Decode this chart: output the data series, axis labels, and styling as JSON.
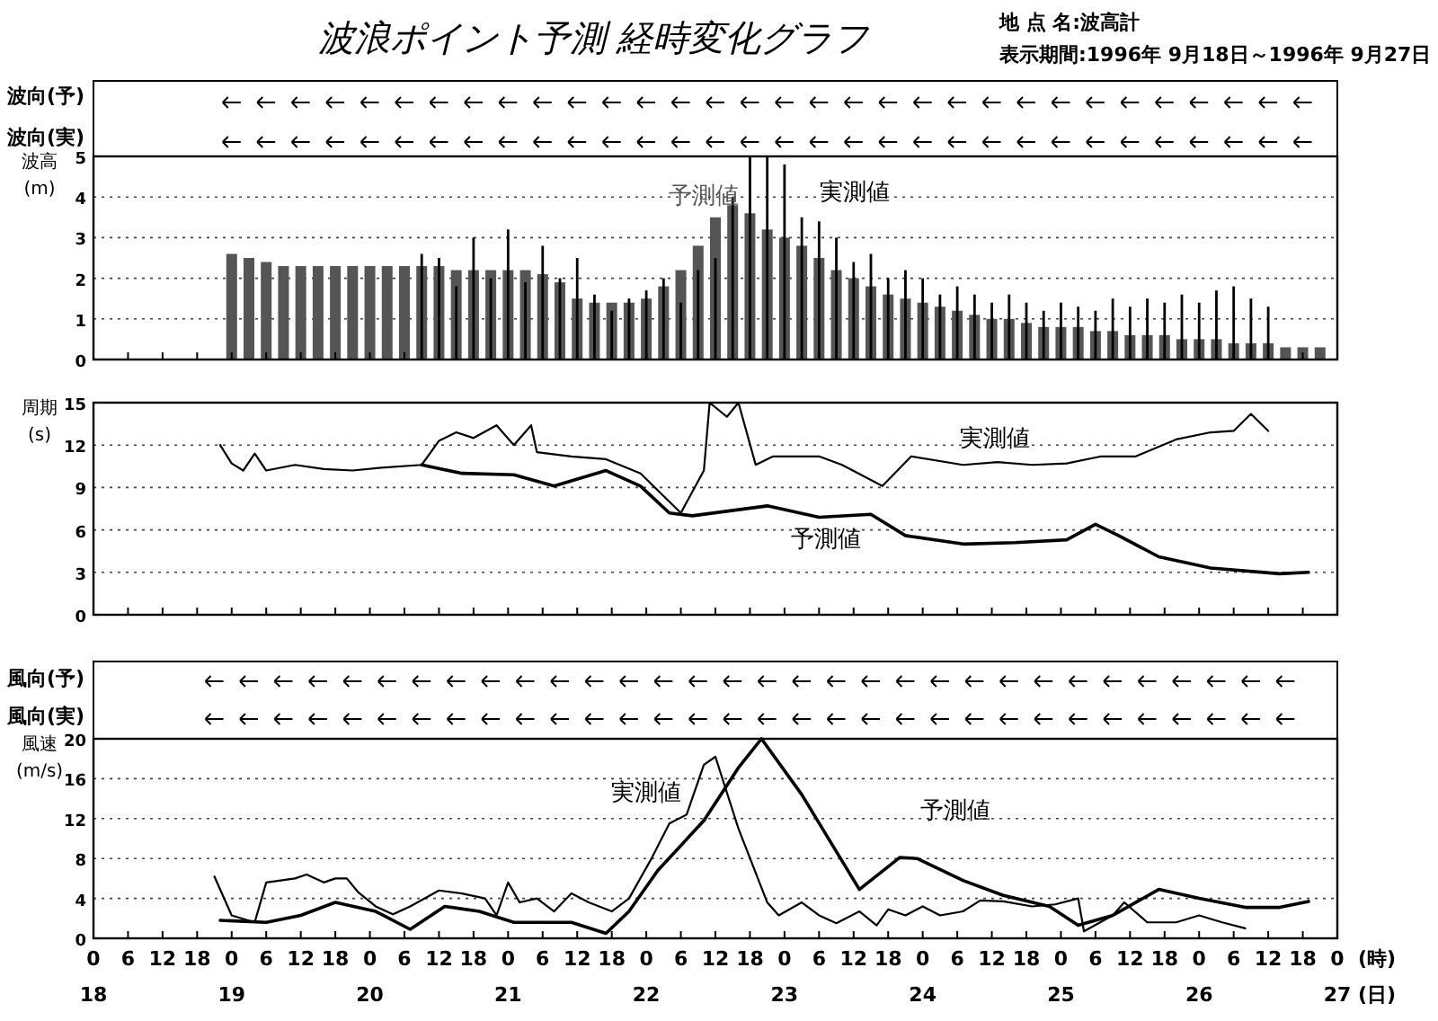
{
  "chart_data": [
    {
      "type": "bar",
      "title": "波浪ポイント予測 経時変化グラフ",
      "ylabel": "波高\n(m)",
      "annotations": [
        "地 点 名:波高計",
        "表示期間:1996年 9月18日～1996年 9月27日",
        "波向(予)",
        "波向(実)"
      ],
      "xlim": [
        "1996-09-18T00:00",
        "1996-09-27T00:00"
      ],
      "xticks": [
        "1996-09-18T00:00",
        "1996-09-18T06:00",
        "1996-09-18T12:00",
        "1996-09-18T18:00",
        "1996-09-19T00:00",
        "1996-09-19T06:00",
        "1996-09-19T12:00",
        "1996-09-19T18:00",
        "1996-09-20T00:00",
        "1996-09-20T06:00",
        "1996-09-20T12:00",
        "1996-09-20T18:00",
        "1996-09-21T00:00",
        "1996-09-21T06:00",
        "1996-09-21T12:00",
        "1996-09-21T18:00",
        "1996-09-22T00:00",
        "1996-09-22T06:00",
        "1996-09-22T12:00",
        "1996-09-22T18:00",
        "1996-09-23T00:00",
        "1996-09-23T06:00",
        "1996-09-23T12:00",
        "1996-09-23T18:00",
        "1996-09-24T00:00",
        "1996-09-24T06:00",
        "1996-09-24T12:00",
        "1996-09-24T18:00",
        "1996-09-25T00:00",
        "1996-09-25T06:00",
        "1996-09-25T12:00",
        "1996-09-25T18:00",
        "1996-09-26T00:00",
        "1996-09-26T06:00",
        "1996-09-26T12:00",
        "1996-09-26T18:00",
        "1996-09-27T00:00"
      ],
      "ylim": [
        0,
        5
      ],
      "yticks": [
        0,
        1,
        2,
        3,
        4,
        5
      ],
      "grid": "y",
      "tick_labels": "y",
      "series": [
        {
          "name": "予測値",
          "color": "#555555",
          "x": [
            "1996-09-19T00:00",
            "1996-09-19T03:00",
            "1996-09-19T06:00",
            "1996-09-19T09:00",
            "1996-09-19T12:00",
            "1996-09-19T15:00",
            "1996-09-19T18:00",
            "1996-09-19T21:00",
            "1996-09-20T00:00",
            "1996-09-20T03:00",
            "1996-09-20T06:00",
            "1996-09-20T09:00",
            "1996-09-20T12:00",
            "1996-09-20T15:00",
            "1996-09-20T18:00",
            "1996-09-20T21:00",
            "1996-09-21T00:00",
            "1996-09-21T03:00",
            "1996-09-21T06:00",
            "1996-09-21T09:00",
            "1996-09-21T12:00",
            "1996-09-21T15:00",
            "1996-09-21T18:00",
            "1996-09-21T21:00",
            "1996-09-22T00:00",
            "1996-09-22T03:00",
            "1996-09-22T06:00",
            "1996-09-22T09:00",
            "1996-09-22T12:00",
            "1996-09-22T15:00",
            "1996-09-22T18:00",
            "1996-09-22T21:00",
            "1996-09-23T00:00",
            "1996-09-23T03:00",
            "1996-09-23T06:00",
            "1996-09-23T09:00",
            "1996-09-23T12:00",
            "1996-09-23T15:00",
            "1996-09-23T18:00",
            "1996-09-23T21:00",
            "1996-09-24T00:00",
            "1996-09-24T03:00",
            "1996-09-24T06:00",
            "1996-09-24T09:00",
            "1996-09-24T12:00",
            "1996-09-24T15:00",
            "1996-09-24T18:00",
            "1996-09-24T21:00",
            "1996-09-25T00:00",
            "1996-09-25T03:00",
            "1996-09-25T06:00",
            "1996-09-25T09:00",
            "1996-09-25T12:00",
            "1996-09-25T15:00",
            "1996-09-25T18:00",
            "1996-09-25T21:00",
            "1996-09-26T00:00",
            "1996-09-26T03:00",
            "1996-09-26T06:00",
            "1996-09-26T09:00",
            "1996-09-26T12:00",
            "1996-09-26T15:00",
            "1996-09-26T18:00",
            "1996-09-26T21:00"
          ],
          "values": [
            2.6,
            2.5,
            2.4,
            2.3,
            2.3,
            2.3,
            2.3,
            2.3,
            2.3,
            2.3,
            2.3,
            2.3,
            2.3,
            2.2,
            2.2,
            2.2,
            2.2,
            2.2,
            2.1,
            1.9,
            1.5,
            1.4,
            1.4,
            1.4,
            1.5,
            1.8,
            2.2,
            2.8,
            3.5,
            3.8,
            3.6,
            3.2,
            3.0,
            2.8,
            2.5,
            2.2,
            2.0,
            1.8,
            1.6,
            1.5,
            1.4,
            1.3,
            1.2,
            1.1,
            1.0,
            1.0,
            0.9,
            0.8,
            0.8,
            0.8,
            0.7,
            0.7,
            0.6,
            0.6,
            0.6,
            0.5,
            0.5,
            0.5,
            0.4,
            0.4,
            0.4,
            0.3,
            0.3,
            0.3
          ]
        },
        {
          "name": "実測値",
          "color": "#000000",
          "x": [
            "1996-09-20T09:00",
            "1996-09-20T12:00",
            "1996-09-20T15:00",
            "1996-09-20T18:00",
            "1996-09-20T21:00",
            "1996-09-21T00:00",
            "1996-09-21T03:00",
            "1996-09-21T06:00",
            "1996-09-21T09:00",
            "1996-09-21T12:00",
            "1996-09-21T15:00",
            "1996-09-21T18:00",
            "1996-09-21T21:00",
            "1996-09-22T00:00",
            "1996-09-22T03:00",
            "1996-09-22T06:00",
            "1996-09-22T09:00",
            "1996-09-22T12:00",
            "1996-09-22T15:00",
            "1996-09-22T18:00",
            "1996-09-22T21:00",
            "1996-09-23T00:00",
            "1996-09-23T03:00",
            "1996-09-23T06:00",
            "1996-09-23T09:00",
            "1996-09-23T12:00",
            "1996-09-23T15:00",
            "1996-09-23T18:00",
            "1996-09-23T21:00",
            "1996-09-24T00:00",
            "1996-09-24T03:00",
            "1996-09-24T06:00",
            "1996-09-24T09:00",
            "1996-09-24T12:00",
            "1996-09-24T15:00",
            "1996-09-24T18:00",
            "1996-09-24T21:00",
            "1996-09-25T00:00",
            "1996-09-25T03:00",
            "1996-09-25T06:00",
            "1996-09-25T09:00",
            "1996-09-25T12:00",
            "1996-09-25T15:00",
            "1996-09-25T18:00",
            "1996-09-25T21:00",
            "1996-09-26T00:00",
            "1996-09-26T03:00",
            "1996-09-26T06:00",
            "1996-09-26T09:00",
            "1996-09-26T12:00"
          ],
          "values": [
            2.6,
            2.5,
            1.8,
            3.0,
            2.0,
            3.2,
            1.9,
            2.8,
            2.0,
            2.5,
            1.6,
            1.2,
            1.5,
            1.7,
            2.0,
            1.4,
            2.2,
            2.5,
            4.0,
            5.0,
            5.0,
            4.8,
            3.5,
            3.4,
            3.0,
            2.4,
            2.6,
            2.0,
            2.2,
            2.0,
            1.6,
            1.8,
            1.6,
            1.4,
            1.6,
            1.4,
            1.2,
            1.4,
            1.3,
            1.2,
            1.5,
            1.3,
            1.5,
            1.4,
            1.6,
            1.4,
            1.7,
            1.8,
            1.5,
            1.3
          ]
        }
      ]
    },
    {
      "type": "line",
      "ylabel": "周期\n(s)",
      "xlim": [
        "1996-09-18T00:00",
        "1996-09-27T00:00"
      ],
      "xticks": [
        "1996-09-18T00:00",
        "1996-09-18T06:00",
        "1996-09-18T12:00",
        "1996-09-18T18:00",
        "1996-09-19T00:00",
        "1996-09-19T06:00",
        "1996-09-19T12:00",
        "1996-09-19T18:00",
        "1996-09-20T00:00",
        "1996-09-20T06:00",
        "1996-09-20T12:00",
        "1996-09-20T18:00",
        "1996-09-21T00:00",
        "1996-09-21T06:00",
        "1996-09-21T12:00",
        "1996-09-21T18:00",
        "1996-09-22T00:00",
        "1996-09-22T06:00",
        "1996-09-22T12:00",
        "1996-09-22T18:00",
        "1996-09-23T00:00",
        "1996-09-23T06:00",
        "1996-09-23T12:00",
        "1996-09-23T18:00",
        "1996-09-24T00:00",
        "1996-09-24T06:00",
        "1996-09-24T12:00",
        "1996-09-24T18:00",
        "1996-09-25T00:00",
        "1996-09-25T06:00",
        "1996-09-25T12:00",
        "1996-09-25T18:00",
        "1996-09-26T00:00",
        "1996-09-26T06:00",
        "1996-09-26T12:00",
        "1996-09-26T18:00",
        "1996-09-27T00:00"
      ],
      "ylim": [
        0,
        15
      ],
      "yticks": [
        0,
        3,
        6,
        9,
        12,
        15
      ],
      "grid": "y",
      "tick_labels": "y",
      "series": [
        {
          "name": "予測値",
          "color": "#000000",
          "x": [
            "1996-09-20T09:00",
            "1996-09-20T16:00",
            "1996-09-21T01:00",
            "1996-09-21T08:00",
            "1996-09-21T17:00",
            "1996-09-21T23:00",
            "1996-09-22T04:00",
            "1996-09-22T08:00",
            "1996-09-22T21:00",
            "1996-09-23T06:00",
            "1996-09-23T15:00",
            "1996-09-23T21:00",
            "1996-09-24T07:00",
            "1996-09-24T16:00",
            "1996-09-25T01:00",
            "1996-09-25T06:00",
            "1996-09-25T10:00",
            "1996-09-25T17:00",
            "1996-09-26T02:00",
            "1996-09-26T14:00",
            "1996-09-26T19:00"
          ],
          "values": [
            10.6,
            10,
            9.9,
            9.1,
            10.2,
            9.1,
            7.2,
            7,
            7.7,
            6.9,
            7.1,
            5.6,
            5,
            5.1,
            5.3,
            6.4,
            5.6,
            4.1,
            3.3,
            2.9,
            3.0
          ]
        },
        {
          "name": "実測値",
          "color": "#000000",
          "x": [
            "1996-09-18T22:00",
            "1996-09-19T00:00",
            "1996-09-19T02:00",
            "1996-09-19T04:00",
            "1996-09-19T06:00",
            "1996-09-19T11:00",
            "1996-09-19T16:00",
            "1996-09-19T21:00",
            "1996-09-20T02:00",
            "1996-09-20T09:00",
            "1996-09-20T12:00",
            "1996-09-20T15:00",
            "1996-09-20T18:00",
            "1996-09-20T22:00",
            "1996-09-21T01:00",
            "1996-09-21T04:00",
            "1996-09-21T05:00",
            "1996-09-21T11:00",
            "1996-09-21T17:00",
            "1996-09-21T23:00",
            "1996-09-22T06:00",
            "1996-09-22T10:00",
            "1996-09-22T11:00",
            "1996-09-22T14:00",
            "1996-09-22T16:00",
            "1996-09-22T19:00",
            "1996-09-22T22:00",
            "1996-09-23T06:00",
            "1996-09-23T10:00",
            "1996-09-23T17:00",
            "1996-09-23T22:00",
            "1996-09-24T07:00",
            "1996-09-24T13:00",
            "1996-09-24T19:00",
            "1996-09-25T01:00",
            "1996-09-25T07:00",
            "1996-09-25T13:00",
            "1996-09-25T20:00",
            "1996-09-26T02:00",
            "1996-09-26T06:00",
            "1996-09-26T09:00",
            "1996-09-26T12:00"
          ],
          "values": [
            12,
            10.7,
            10.2,
            11.4,
            10.2,
            10.6,
            10.3,
            10.2,
            10.4,
            10.6,
            12.3,
            12.9,
            12.5,
            13.4,
            12,
            13.4,
            11.5,
            11.2,
            11,
            10,
            7.2,
            10.2,
            15,
            14,
            15,
            10.6,
            11.2,
            11.2,
            10.6,
            9.1,
            11.2,
            10.6,
            10.8,
            10.6,
            10.7,
            11.2,
            11.2,
            12.4,
            12.9,
            13,
            14.2,
            13
          ]
        }
      ]
    },
    {
      "type": "line",
      "ylabel": "風速\n(m/s)",
      "xlabel": "(時)\n(日)",
      "annotations": [
        "風向(予)",
        "風向(実)"
      ],
      "xlim": [
        "1996-09-18T00:00",
        "1996-09-27T00:00"
      ],
      "xticks": [
        {
          "value": "1996-09-18T00:00",
          "label": "0\n18"
        },
        {
          "value": "1996-09-18T06:00",
          "label": "6"
        },
        {
          "value": "1996-09-18T12:00",
          "label": "12"
        },
        {
          "value": "1996-09-18T18:00",
          "label": "18"
        },
        {
          "value": "1996-09-19T00:00",
          "label": "0\n19"
        },
        {
          "value": "1996-09-19T06:00",
          "label": "6"
        },
        {
          "value": "1996-09-19T12:00",
          "label": "12"
        },
        {
          "value": "1996-09-19T18:00",
          "label": "18"
        },
        {
          "value": "1996-09-20T00:00",
          "label": "0\n20"
        },
        {
          "value": "1996-09-20T06:00",
          "label": "6"
        },
        {
          "value": "1996-09-20T12:00",
          "label": "12"
        },
        {
          "value": "1996-09-20T18:00",
          "label": "18"
        },
        {
          "value": "1996-09-21T00:00",
          "label": "0\n21"
        },
        {
          "value": "1996-09-21T06:00",
          "label": "6"
        },
        {
          "value": "1996-09-21T12:00",
          "label": "12"
        },
        {
          "value": "1996-09-21T18:00",
          "label": "18"
        },
        {
          "value": "1996-09-22T00:00",
          "label": "0\n22"
        },
        {
          "value": "1996-09-22T06:00",
          "label": "6"
        },
        {
          "value": "1996-09-22T12:00",
          "label": "12"
        },
        {
          "value": "1996-09-22T18:00",
          "label": "18"
        },
        {
          "value": "1996-09-23T00:00",
          "label": "0\n23"
        },
        {
          "value": "1996-09-23T06:00",
          "label": "6"
        },
        {
          "value": "1996-09-23T12:00",
          "label": "12"
        },
        {
          "value": "1996-09-23T18:00",
          "label": "18"
        },
        {
          "value": "1996-09-24T00:00",
          "label": "0\n24"
        },
        {
          "value": "1996-09-24T06:00",
          "label": "6"
        },
        {
          "value": "1996-09-24T12:00",
          "label": "12"
        },
        {
          "value": "1996-09-24T18:00",
          "label": "18"
        },
        {
          "value": "1996-09-25T00:00",
          "label": "0\n25"
        },
        {
          "value": "1996-09-25T06:00",
          "label": "6"
        },
        {
          "value": "1996-09-25T12:00",
          "label": "12"
        },
        {
          "value": "1996-09-25T18:00",
          "label": "18"
        },
        {
          "value": "1996-09-26T00:00",
          "label": "0\n26"
        },
        {
          "value": "1996-09-26T06:00",
          "label": "6"
        },
        {
          "value": "1996-09-26T12:00",
          "label": "12"
        },
        {
          "value": "1996-09-26T18:00",
          "label": "18"
        },
        {
          "value": "1996-09-27T00:00",
          "label": "0\n27"
        }
      ],
      "ylim": [
        0,
        20
      ],
      "yticks": [
        0,
        4,
        8,
        12,
        16,
        20
      ],
      "grid": "y",
      "series": [
        {
          "name": "予測値",
          "color": "#000000",
          "x": [
            "1996-09-18T22:00",
            "1996-09-19T06:00",
            "1996-09-19T12:00",
            "1996-09-19T18:00",
            "1996-09-20T01:00",
            "1996-09-20T07:00",
            "1996-09-20T13:00",
            "1996-09-20T19:00",
            "1996-09-21T01:00",
            "1996-09-21T11:00",
            "1996-09-21T17:00",
            "1996-09-21T21:00",
            "1996-09-22T02:00",
            "1996-09-22T10:00",
            "1996-09-22T16:00",
            "1996-09-22T20:00",
            "1996-09-23T03:00",
            "1996-09-23T13:00",
            "1996-09-23T20:00",
            "1996-09-23T23:00",
            "1996-09-24T07:00",
            "1996-09-24T14:00",
            "1996-09-24T22:00",
            "1996-09-25T03:00",
            "1996-09-25T09:00",
            "1996-09-25T17:00",
            "1996-09-26T00:00",
            "1996-09-26T08:00",
            "1996-09-26T14:00",
            "1996-09-26T19:00"
          ],
          "values": [
            1.8,
            1.6,
            2.3,
            3.6,
            2.7,
            0.9,
            3.2,
            2.7,
            1.6,
            1.6,
            0.5,
            2.7,
            6.8,
            11.8,
            17.1,
            20,
            14.4,
            4.9,
            8.1,
            8,
            5.8,
            4.3,
            3.2,
            1.3,
            2.3,
            4.9,
            4,
            3.1,
            3.1,
            3.7
          ]
        },
        {
          "name": "実測値",
          "color": "#000000",
          "x": [
            "1996-09-18T21:00",
            "1996-09-19T00:00",
            "1996-09-19T04:00",
            "1996-09-19T06:00",
            "1996-09-19T11:00",
            "1996-09-19T13:00",
            "1996-09-19T16:00",
            "1996-09-19T18:00",
            "1996-09-19T20:00",
            "1996-09-19T22:00",
            "1996-09-20T01:00",
            "1996-09-20T04:00",
            "1996-09-20T07:00",
            "1996-09-20T12:00",
            "1996-09-20T16:00",
            "1996-09-20T20:00",
            "1996-09-20T22:00",
            "1996-09-21T00:00",
            "1996-09-21T02:00",
            "1996-09-21T05:00",
            "1996-09-21T08:00",
            "1996-09-21T11:00",
            "1996-09-21T14:00",
            "1996-09-21T18:00",
            "1996-09-21T21:00",
            "1996-09-22T01:00",
            "1996-09-22T04:00",
            "1996-09-22T07:00",
            "1996-09-22T10:00",
            "1996-09-22T12:00",
            "1996-09-22T16:00",
            "1996-09-22T21:00",
            "1996-09-22T23:00",
            "1996-09-23T03:00",
            "1996-09-23T06:00",
            "1996-09-23T09:00",
            "1996-09-23T13:00",
            "1996-09-23T16:00",
            "1996-09-23T18:00",
            "1996-09-23T21:00",
            "1996-09-24T00:00",
            "1996-09-24T03:00",
            "1996-09-24T07:00",
            "1996-09-24T10:00",
            "1996-09-24T14:00",
            "1996-09-24T19:00",
            "1996-09-24T23:00",
            "1996-09-25T03:00",
            "1996-09-25T04:00",
            "1996-09-25T09:00",
            "1996-09-25T11:00",
            "1996-09-25T15:00",
            "1996-09-25T20:00",
            "1996-09-26T00:00",
            "1996-09-26T04:00",
            "1996-09-26T08:00"
          ],
          "values": [
            6.2,
            2.3,
            1.6,
            5.6,
            6,
            6.4,
            5.6,
            6,
            6,
            4.6,
            3.2,
            2.4,
            3.2,
            4.8,
            4.5,
            4,
            2.3,
            5.6,
            3.6,
            4,
            2.7,
            4.5,
            3.6,
            2.7,
            4,
            8.1,
            11.5,
            12.4,
            17.4,
            18.2,
            11,
            3.6,
            2.3,
            3.6,
            2.3,
            1.5,
            2.7,
            1.3,
            2.9,
            2.3,
            3.2,
            2.3,
            2.7,
            3.8,
            3.7,
            3.2,
            3.4,
            4,
            0.7,
            2.3,
            3.6,
            1.6,
            1.6,
            2.3,
            1.6,
            1
          ]
        }
      ]
    }
  ]
}
